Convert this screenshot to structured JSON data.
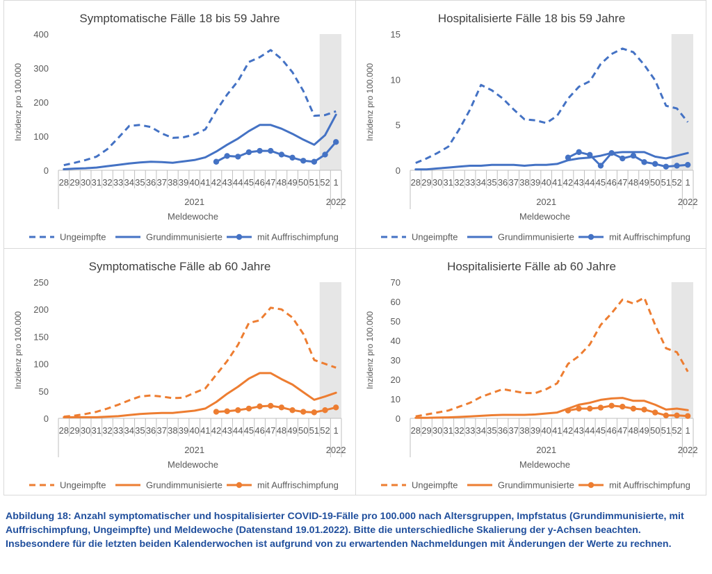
{
  "figure_caption": "Abbildung 18: Anzahl symptomatischer und hospitalisierter COVID-19-Fälle pro 100.000 nach Altersgruppen, Impfstatus (Grundimmunisierte, mit Auffrischimpfung, Ungeimpfte) und Meldewoche (Datenstand 19.01.2022). Bitte die unterschiedliche Skalierung der y-Achsen beachten. Insbesondere für die letzten beiden Kalenderwochen ist aufgrund von zu erwartenden Nachmeldungen mit Änderungen der Werte zu rechnen.",
  "chart_data": [
    {
      "type": "line",
      "title": "Symptomatische Fälle 18 bis 59 Jahre",
      "xlabel": "Meldewoche",
      "ylabel": "Inzidenz pro 100.000",
      "year_labels": [
        "2021",
        "2022"
      ],
      "categories": [
        "28",
        "29",
        "30",
        "31",
        "32",
        "33",
        "34",
        "35",
        "36",
        "37",
        "38",
        "39",
        "40",
        "41",
        "42",
        "43",
        "44",
        "45",
        "46",
        "47",
        "48",
        "49",
        "50",
        "51",
        "52",
        "1"
      ],
      "ylim": [
        0,
        400
      ],
      "yticks": [
        0,
        100,
        200,
        300,
        400
      ],
      "shaded_weeks": [
        "52",
        "1"
      ],
      "color": "#4472c4",
      "grid": false,
      "legend_position": "bottom",
      "series": [
        {
          "name": "Ungeimpfte",
          "style": "dashed",
          "values": [
            15,
            22,
            30,
            40,
            62,
            95,
            130,
            133,
            127,
            108,
            95,
            97,
            105,
            120,
            175,
            222,
            262,
            318,
            332,
            353,
            327,
            288,
            233,
            160,
            162,
            173
          ]
        },
        {
          "name": "Grundimmunisierte",
          "style": "solid",
          "values": [
            3,
            5,
            6,
            8,
            12,
            16,
            20,
            23,
            25,
            24,
            22,
            26,
            30,
            38,
            55,
            75,
            93,
            115,
            133,
            133,
            122,
            107,
            90,
            75,
            103,
            163
          ]
        },
        {
          "name": "mit Auffrischimpfung",
          "style": "markers",
          "values": [
            null,
            null,
            null,
            null,
            null,
            null,
            null,
            null,
            null,
            null,
            null,
            null,
            null,
            null,
            25,
            42,
            40,
            53,
            57,
            57,
            46,
            37,
            28,
            25,
            46,
            83
          ]
        }
      ]
    },
    {
      "type": "line",
      "title": "Hospitalisierte Fälle 18 bis 59 Jahre",
      "xlabel": "Meldewoche",
      "ylabel": "Inzidenz pro 100.000",
      "year_labels": [
        "2021",
        "2022"
      ],
      "categories": [
        "28",
        "29",
        "30",
        "31",
        "32",
        "33",
        "34",
        "35",
        "36",
        "37",
        "38",
        "39",
        "40",
        "41",
        "42",
        "43",
        "44",
        "45",
        "46",
        "47",
        "48",
        "49",
        "50",
        "51",
        "52",
        "1"
      ],
      "ylim": [
        0,
        15
      ],
      "yticks": [
        0,
        5,
        10,
        15
      ],
      "shaded_weeks": [
        "52",
        "1"
      ],
      "color": "#4472c4",
      "grid": false,
      "legend_position": "bottom",
      "series": [
        {
          "name": "Ungeimpfte",
          "style": "dashed",
          "values": [
            0.8,
            1.3,
            1.9,
            2.6,
            4.5,
            6.7,
            9.4,
            8.8,
            7.9,
            6.7,
            5.6,
            5.5,
            5.2,
            6.0,
            7.9,
            9.2,
            9.8,
            11.7,
            12.8,
            13.4,
            13.0,
            11.6,
            9.9,
            7.1,
            6.8,
            5.3
          ]
        },
        {
          "name": "Grundimmunisierte",
          "style": "solid",
          "values": [
            0.1,
            0.1,
            0.2,
            0.3,
            0.4,
            0.5,
            0.5,
            0.6,
            0.6,
            0.6,
            0.5,
            0.6,
            0.6,
            0.7,
            1.1,
            1.3,
            1.4,
            1.6,
            1.9,
            2.0,
            2.0,
            2.0,
            1.5,
            1.3,
            1.6,
            1.9
          ]
        },
        {
          "name": "mit Auffrischimpfung",
          "style": "markers",
          "values": [
            null,
            null,
            null,
            null,
            null,
            null,
            null,
            null,
            null,
            null,
            null,
            null,
            null,
            null,
            1.4,
            2.0,
            1.7,
            0.5,
            1.9,
            1.3,
            1.6,
            0.9,
            0.7,
            0.4,
            0.5,
            0.6
          ]
        }
      ]
    },
    {
      "type": "line",
      "title": "Symptomatische Fälle ab 60 Jahre",
      "xlabel": "Meldewoche",
      "ylabel": "Inzidenz pro 100.000",
      "year_labels": [
        "2021",
        "2022"
      ],
      "categories": [
        "28",
        "29",
        "30",
        "31",
        "32",
        "33",
        "34",
        "35",
        "36",
        "37",
        "38",
        "39",
        "40",
        "41",
        "42",
        "43",
        "44",
        "45",
        "46",
        "47",
        "48",
        "49",
        "50",
        "51",
        "52",
        "1"
      ],
      "ylim": [
        0,
        250
      ],
      "yticks": [
        0,
        50,
        100,
        150,
        200,
        250
      ],
      "shaded_weeks": [
        "52",
        "1"
      ],
      "color": "#ed7d31",
      "grid": false,
      "legend_position": "bottom",
      "series": [
        {
          "name": "Ungeimpfte",
          "style": "dashed",
          "values": [
            3,
            5,
            8,
            12,
            18,
            25,
            33,
            40,
            42,
            40,
            37,
            38,
            47,
            55,
            80,
            105,
            135,
            175,
            180,
            203,
            200,
            185,
            155,
            107,
            100,
            93
          ]
        },
        {
          "name": "Grundimmunisierte",
          "style": "solid",
          "values": [
            2,
            2,
            2,
            2,
            3,
            4,
            6,
            8,
            9,
            10,
            10,
            12,
            14,
            18,
            30,
            45,
            58,
            73,
            83,
            83,
            72,
            62,
            48,
            34,
            40,
            47
          ]
        },
        {
          "name": "mit Auffrischimpfung",
          "style": "markers",
          "values": [
            null,
            null,
            null,
            null,
            null,
            null,
            null,
            null,
            null,
            null,
            null,
            null,
            null,
            null,
            12,
            13,
            15,
            18,
            22,
            23,
            20,
            15,
            12,
            11,
            15,
            20
          ]
        }
      ]
    },
    {
      "type": "line",
      "title": "Hospitalisierte Fälle ab 60 Jahre",
      "xlabel": "Meldewoche",
      "ylabel": "Inzidenz pro 100.000",
      "year_labels": [
        "2021",
        "2022"
      ],
      "categories": [
        "28",
        "29",
        "30",
        "31",
        "32",
        "33",
        "34",
        "35",
        "36",
        "37",
        "38",
        "39",
        "40",
        "41",
        "42",
        "43",
        "44",
        "45",
        "46",
        "47",
        "48",
        "49",
        "50",
        "51",
        "52",
        "1"
      ],
      "ylim": [
        0,
        70
      ],
      "yticks": [
        0,
        10,
        20,
        30,
        40,
        50,
        60,
        70
      ],
      "shaded_weeks": [
        "52",
        "1"
      ],
      "color": "#ed7d31",
      "grid": false,
      "legend_position": "bottom",
      "series": [
        {
          "name": "Ungeimpfte",
          "style": "dashed",
          "values": [
            1,
            2,
            3,
            4,
            6,
            8,
            11,
            13,
            15,
            14,
            13,
            13,
            15,
            18,
            28,
            32,
            38,
            48,
            54,
            61,
            59,
            62,
            48,
            36,
            34,
            24
          ]
        },
        {
          "name": "Grundimmunisierte",
          "style": "solid",
          "values": [
            0.3,
            0.3,
            0.4,
            0.5,
            0.7,
            1.0,
            1.3,
            1.6,
            1.8,
            1.8,
            1.8,
            2.0,
            2.5,
            3.0,
            5.0,
            7.0,
            8.0,
            9.5,
            10.2,
            10.5,
            9.0,
            9.0,
            7.0,
            4.5,
            5.0,
            4.2
          ]
        },
        {
          "name": "mit Auffrischimpfung",
          "style": "markers",
          "values": [
            null,
            null,
            null,
            null,
            null,
            null,
            null,
            null,
            null,
            null,
            null,
            null,
            null,
            null,
            4,
            5,
            5,
            5.5,
            6.5,
            6,
            5,
            4.5,
            3,
            1.5,
            1.5,
            1.2
          ]
        }
      ]
    }
  ]
}
